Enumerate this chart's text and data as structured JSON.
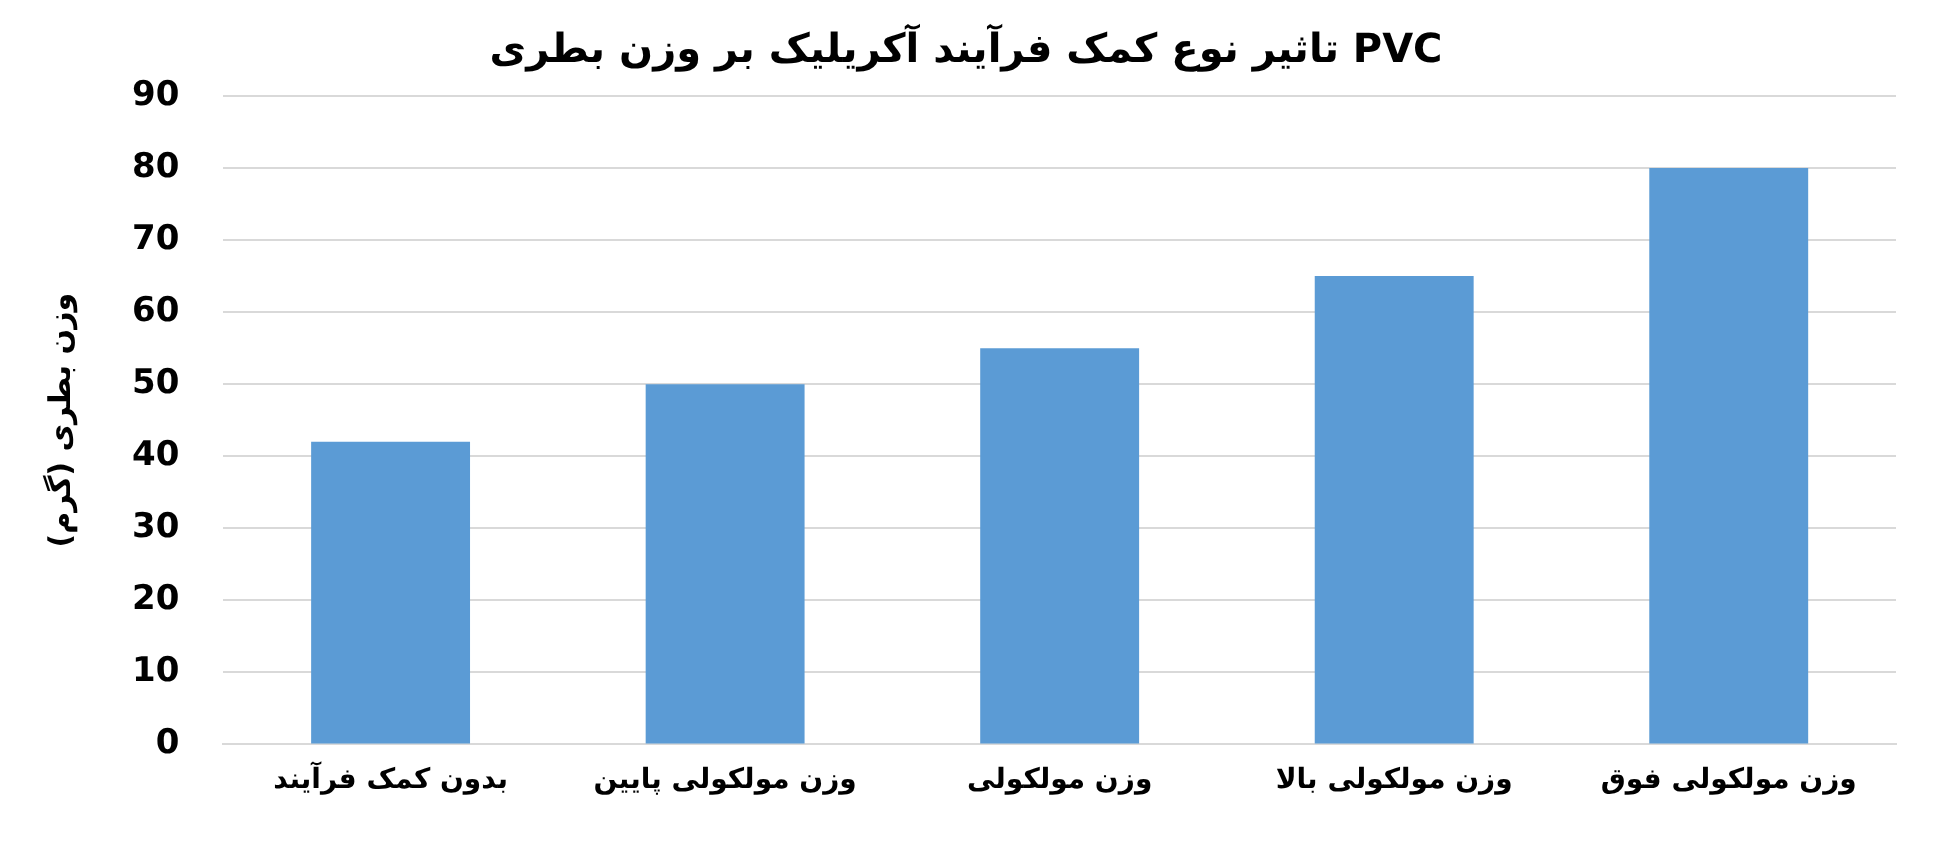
{
  "chart_data": {
    "type": "bar",
    "title": "تاثیر نوع کمک فرآیند آکریلیک بر وزن بطری PVC",
    "ylabel": "وزن بطری (گرم)",
    "categories": [
      "بدون کمک فرآیند",
      "وزن مولکولی پایین",
      "وزن مولکولی",
      "وزن مولکولی بالا",
      "وزن مولکولی فوق"
    ],
    "values": [
      42,
      50,
      55,
      65,
      80
    ],
    "color": "#5b9bd5",
    "ylim": [
      0,
      90
    ],
    "yticks": [
      0,
      10,
      20,
      30,
      40,
      50,
      60,
      70,
      80,
      90
    ],
    "grid": "y",
    "legend": false
  }
}
